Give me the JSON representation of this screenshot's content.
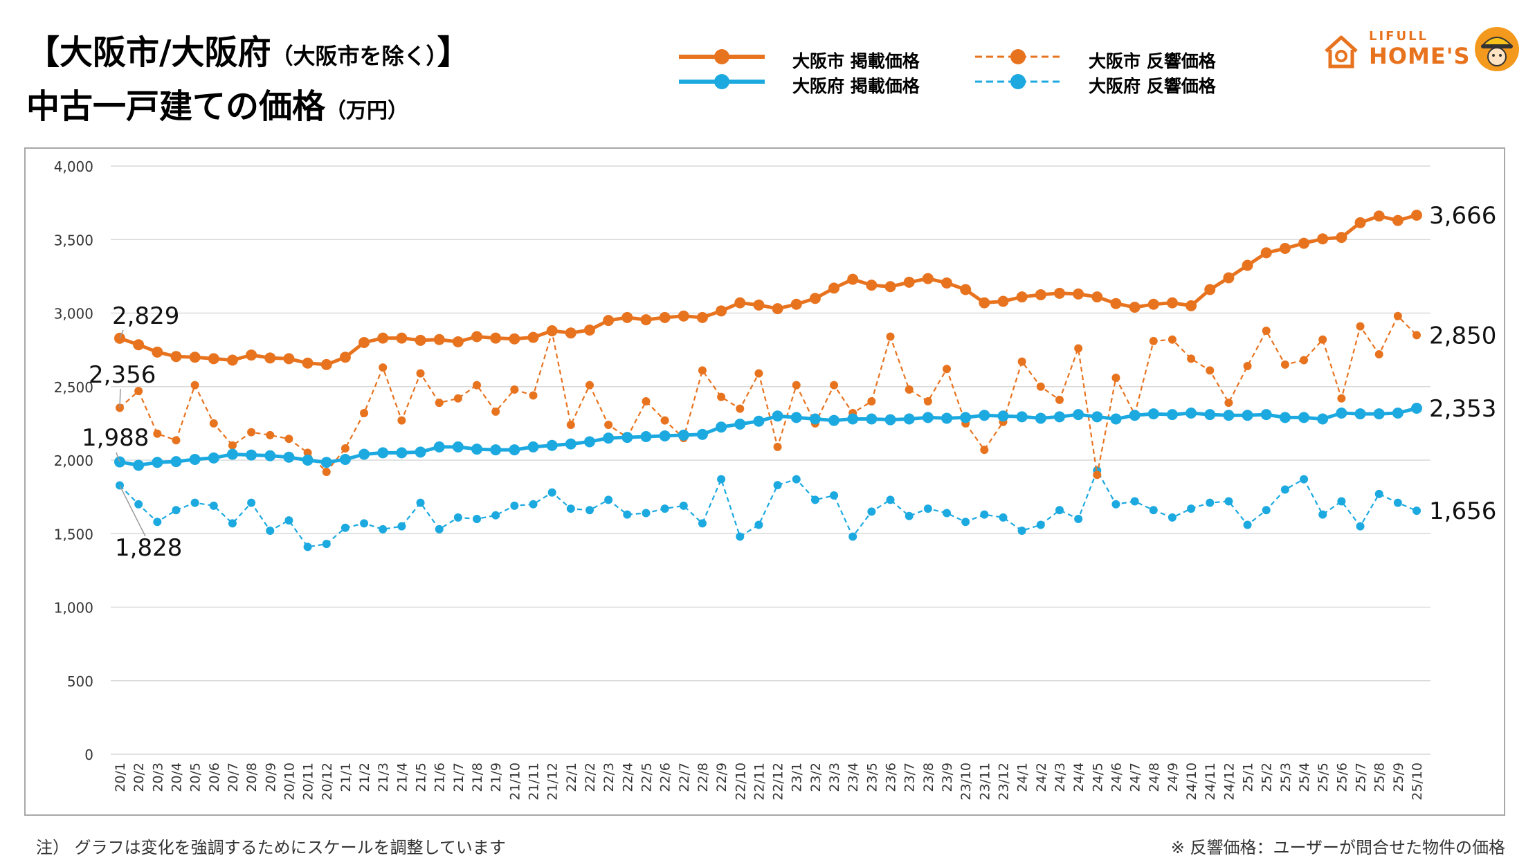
{
  "page": {
    "title_line1": "【大阪市/大阪府",
    "title_line1_sub": "（大阪市を除く）",
    "title_line1_end": "】",
    "title_line2": "中古一戸建ての価格",
    "title_line2_unit": "（万円）",
    "logo_small": "LIFULL",
    "logo_big": "HOME'S",
    "note_left": "注）  グラフは変化を強調するためにスケールを調整しています",
    "note_right": "※ 反響価格：ユーザーが問合せた物件の価格"
  },
  "colors": {
    "orange": "#e8731f",
    "blue": "#1ba9e0",
    "grid": "#d9d9d9"
  },
  "chart_data": {
    "type": "line",
    "title": "中古一戸建ての価格（万円）",
    "ylim": [
      0,
      4000
    ],
    "yticks": [
      0,
      500,
      1000,
      1500,
      2000,
      2500,
      3000,
      3500,
      4000
    ],
    "ytick_labels": [
      "0",
      "500",
      "1,000",
      "1,500",
      "2,000",
      "2,500",
      "3,000",
      "3,500",
      "4,000"
    ],
    "legend_position": "top",
    "categories": [
      "20/1",
      "20/2",
      "20/3",
      "20/4",
      "20/5",
      "20/6",
      "20/7",
      "20/8",
      "20/9",
      "20/10",
      "20/11",
      "20/12",
      "21/1",
      "21/2",
      "21/3",
      "21/4",
      "21/5",
      "21/6",
      "21/7",
      "21/8",
      "21/9",
      "21/10",
      "21/11",
      "21/12",
      "22/1",
      "22/2",
      "22/3",
      "22/4",
      "22/5",
      "22/6",
      "22/7",
      "22/8",
      "22/9",
      "22/10",
      "22/11",
      "22/12",
      "23/1",
      "23/2",
      "23/3",
      "23/4",
      "23/5",
      "23/6",
      "23/7",
      "23/8",
      "23/9",
      "23/10",
      "23/11",
      "23/12",
      "24/1",
      "24/2",
      "24/3",
      "24/4",
      "24/5",
      "24/6",
      "24/7",
      "24/8",
      "24/9",
      "24/10",
      "24/11",
      "24/12",
      "25/1",
      "25/2",
      "25/3",
      "25/4",
      "25/5",
      "25/6",
      "25/7",
      "25/8",
      "25/9",
      "25/10"
    ],
    "series": [
      {
        "name": "大阪市 掲載価格",
        "style": "solid",
        "color": "#e8731f",
        "values": [
          2829,
          2785,
          2735,
          2705,
          2700,
          2690,
          2680,
          2715,
          2695,
          2690,
          2660,
          2650,
          2700,
          2800,
          2830,
          2830,
          2815,
          2820,
          2805,
          2840,
          2830,
          2825,
          2835,
          2880,
          2865,
          2885,
          2950,
          2970,
          2955,
          2970,
          2980,
          2970,
          3015,
          3070,
          3055,
          3030,
          3060,
          3100,
          3170,
          3230,
          3190,
          3180,
          3210,
          3235,
          3205,
          3160,
          3070,
          3080,
          3110,
          3125,
          3135,
          3130,
          3110,
          3065,
          3040,
          3060,
          3070,
          3050,
          3160,
          3240,
          3325,
          3410,
          3440,
          3475,
          3505,
          3515,
          3615,
          3660,
          3630,
          3666
        ],
        "start_label": "2,829",
        "end_label": "3,666"
      },
      {
        "name": "大阪府 掲載価格",
        "style": "solid",
        "color": "#1ba9e0",
        "values": [
          1988,
          1965,
          1985,
          1990,
          2005,
          2015,
          2040,
          2035,
          2030,
          2020,
          2000,
          1985,
          2005,
          2040,
          2050,
          2050,
          2055,
          2090,
          2090,
          2075,
          2070,
          2070,
          2090,
          2100,
          2110,
          2125,
          2150,
          2155,
          2160,
          2165,
          2170,
          2175,
          2225,
          2245,
          2265,
          2300,
          2290,
          2280,
          2270,
          2280,
          2280,
          2275,
          2280,
          2290,
          2285,
          2290,
          2305,
          2300,
          2295,
          2285,
          2295,
          2310,
          2295,
          2280,
          2305,
          2315,
          2310,
          2320,
          2310,
          2305,
          2305,
          2310,
          2290,
          2290,
          2280,
          2320,
          2315,
          2315,
          2320,
          2353
        ],
        "start_label": "1,988",
        "end_label": "2,353"
      },
      {
        "name": "大阪市 反響価格",
        "style": "dashed",
        "color": "#e8731f",
        "values": [
          2356,
          2470,
          2180,
          2135,
          2510,
          2250,
          2100,
          2190,
          2170,
          2145,
          2050,
          1920,
          2080,
          2320,
          2630,
          2270,
          2590,
          2390,
          2420,
          2510,
          2330,
          2480,
          2440,
          2870,
          2240,
          2510,
          2240,
          2155,
          2400,
          2270,
          2150,
          2610,
          2430,
          2350,
          2590,
          2090,
          2510,
          2250,
          2510,
          2320,
          2400,
          2840,
          2480,
          2400,
          2620,
          2250,
          2070,
          2260,
          2670,
          2500,
          2410,
          2760,
          1900,
          2560,
          2310,
          2810,
          2820,
          2690,
          2610,
          2390,
          2640,
          2880,
          2650,
          2680,
          2820,
          2420,
          2910,
          2720,
          2980,
          2850
        ],
        "start_label": "2,356",
        "end_label": "2,850"
      },
      {
        "name": "大阪府 反響価格",
        "style": "dashed",
        "color": "#1ba9e0",
        "values": [
          1828,
          1700,
          1580,
          1660,
          1710,
          1690,
          1570,
          1710,
          1520,
          1590,
          1410,
          1430,
          1540,
          1570,
          1530,
          1550,
          1710,
          1530,
          1610,
          1600,
          1625,
          1690,
          1700,
          1780,
          1670,
          1660,
          1730,
          1630,
          1640,
          1670,
          1690,
          1570,
          1870,
          1480,
          1560,
          1830,
          1870,
          1730,
          1760,
          1480,
          1650,
          1730,
          1620,
          1670,
          1640,
          1580,
          1630,
          1610,
          1520,
          1560,
          1660,
          1600,
          1930,
          1700,
          1720,
          1660,
          1610,
          1670,
          1710,
          1720,
          1560,
          1660,
          1800,
          1870,
          1630,
          1720,
          1550,
          1770,
          1710,
          1656
        ],
        "start_label": "1,828",
        "end_label": "1,656"
      }
    ]
  }
}
